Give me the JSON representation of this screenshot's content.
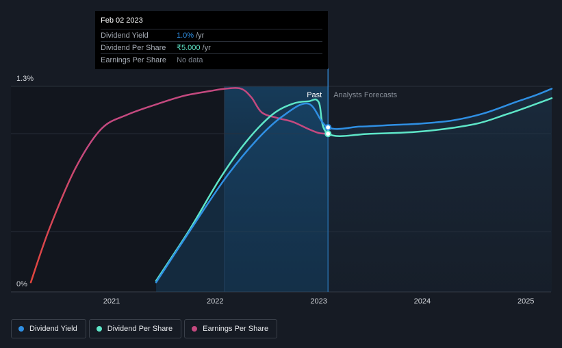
{
  "chart_data": {
    "type": "line",
    "title": "",
    "xlabel": "",
    "ylabel": "",
    "ylim": [
      0,
      1.3
    ],
    "y_ticks": [
      {
        "value": 1.3,
        "label": "1.3%"
      },
      {
        "value": 0,
        "label": "0%"
      }
    ],
    "x_ticks": [
      {
        "value": 2021,
        "label": "2021"
      },
      {
        "value": 2022,
        "label": "2022"
      },
      {
        "value": 2023,
        "label": "2023"
      },
      {
        "value": 2024,
        "label": "2024"
      },
      {
        "value": 2025,
        "label": "2025"
      }
    ],
    "divider_x": 2023.09,
    "past_label": "Past",
    "forecast_label": "Analysts Forecasts",
    "series": [
      {
        "name": "Earnings Per Share",
        "color": "#c4497f",
        "start_color": "#e2453c",
        "points": [
          [
            2020.22,
            0.06
          ],
          [
            2020.4,
            0.4
          ],
          [
            2020.65,
            0.78
          ],
          [
            2020.9,
            1.03
          ],
          [
            2021.15,
            1.12
          ],
          [
            2021.45,
            1.19
          ],
          [
            2021.7,
            1.24
          ],
          [
            2021.95,
            1.27
          ],
          [
            2022.1,
            1.285
          ],
          [
            2022.25,
            1.285
          ],
          [
            2022.35,
            1.23
          ],
          [
            2022.45,
            1.135
          ],
          [
            2022.6,
            1.1
          ],
          [
            2022.75,
            1.075
          ],
          [
            2022.9,
            1.03
          ],
          [
            2023.0,
            1.005
          ],
          [
            2023.09,
            1.0
          ]
        ]
      },
      {
        "name": "Dividend Per Share",
        "color": "#5ee6c8",
        "points": [
          [
            2021.43,
            0.07
          ],
          [
            2021.75,
            0.39
          ],
          [
            2022.05,
            0.72
          ],
          [
            2022.3,
            0.95
          ],
          [
            2022.55,
            1.12
          ],
          [
            2022.75,
            1.19
          ],
          [
            2022.9,
            1.205
          ],
          [
            2023.0,
            1.2
          ],
          [
            2023.09,
            1.0
          ],
          [
            2023.5,
            1.0
          ],
          [
            2024.0,
            1.015
          ],
          [
            2024.5,
            1.06
          ],
          [
            2024.8,
            1.12
          ],
          [
            2025.0,
            1.165
          ],
          [
            2025.25,
            1.225
          ]
        ]
      },
      {
        "name": "Dividend Yield",
        "color": "#2f8fe3",
        "points": [
          [
            2021.43,
            0.06
          ],
          [
            2021.75,
            0.38
          ],
          [
            2022.1,
            0.72
          ],
          [
            2022.4,
            0.96
          ],
          [
            2022.65,
            1.11
          ],
          [
            2022.9,
            1.19
          ],
          [
            2023.09,
            1.04
          ],
          [
            2023.4,
            1.045
          ],
          [
            2023.7,
            1.055
          ],
          [
            2024.0,
            1.065
          ],
          [
            2024.3,
            1.085
          ],
          [
            2024.6,
            1.13
          ],
          [
            2024.9,
            1.2
          ],
          [
            2025.1,
            1.245
          ],
          [
            2025.25,
            1.285
          ]
        ]
      }
    ],
    "markers": [
      {
        "series": "Dividend Yield",
        "x": 2023.09,
        "y": 1.04
      },
      {
        "series": "Dividend Per Share",
        "x": 2023.09,
        "y": 1.0
      }
    ]
  },
  "tooltip": {
    "date": "Feb 02 2023",
    "rows": [
      {
        "label": "Dividend Yield",
        "value": "1.0%",
        "unit": "/yr",
        "color": "#2f8fe3"
      },
      {
        "label": "Dividend Per Share",
        "value": "₹5.000",
        "unit": "/yr",
        "color": "#5ee6c8"
      },
      {
        "label": "Earnings Per Share",
        "value": "No data",
        "unit": "",
        "color": "#7c838d"
      }
    ]
  },
  "legend": [
    {
      "label": "Dividend Yield",
      "color": "#2f8fe3"
    },
    {
      "label": "Dividend Per Share",
      "color": "#5ee6c8"
    },
    {
      "label": "Earnings Per Share",
      "color": "#c4497f"
    }
  ]
}
